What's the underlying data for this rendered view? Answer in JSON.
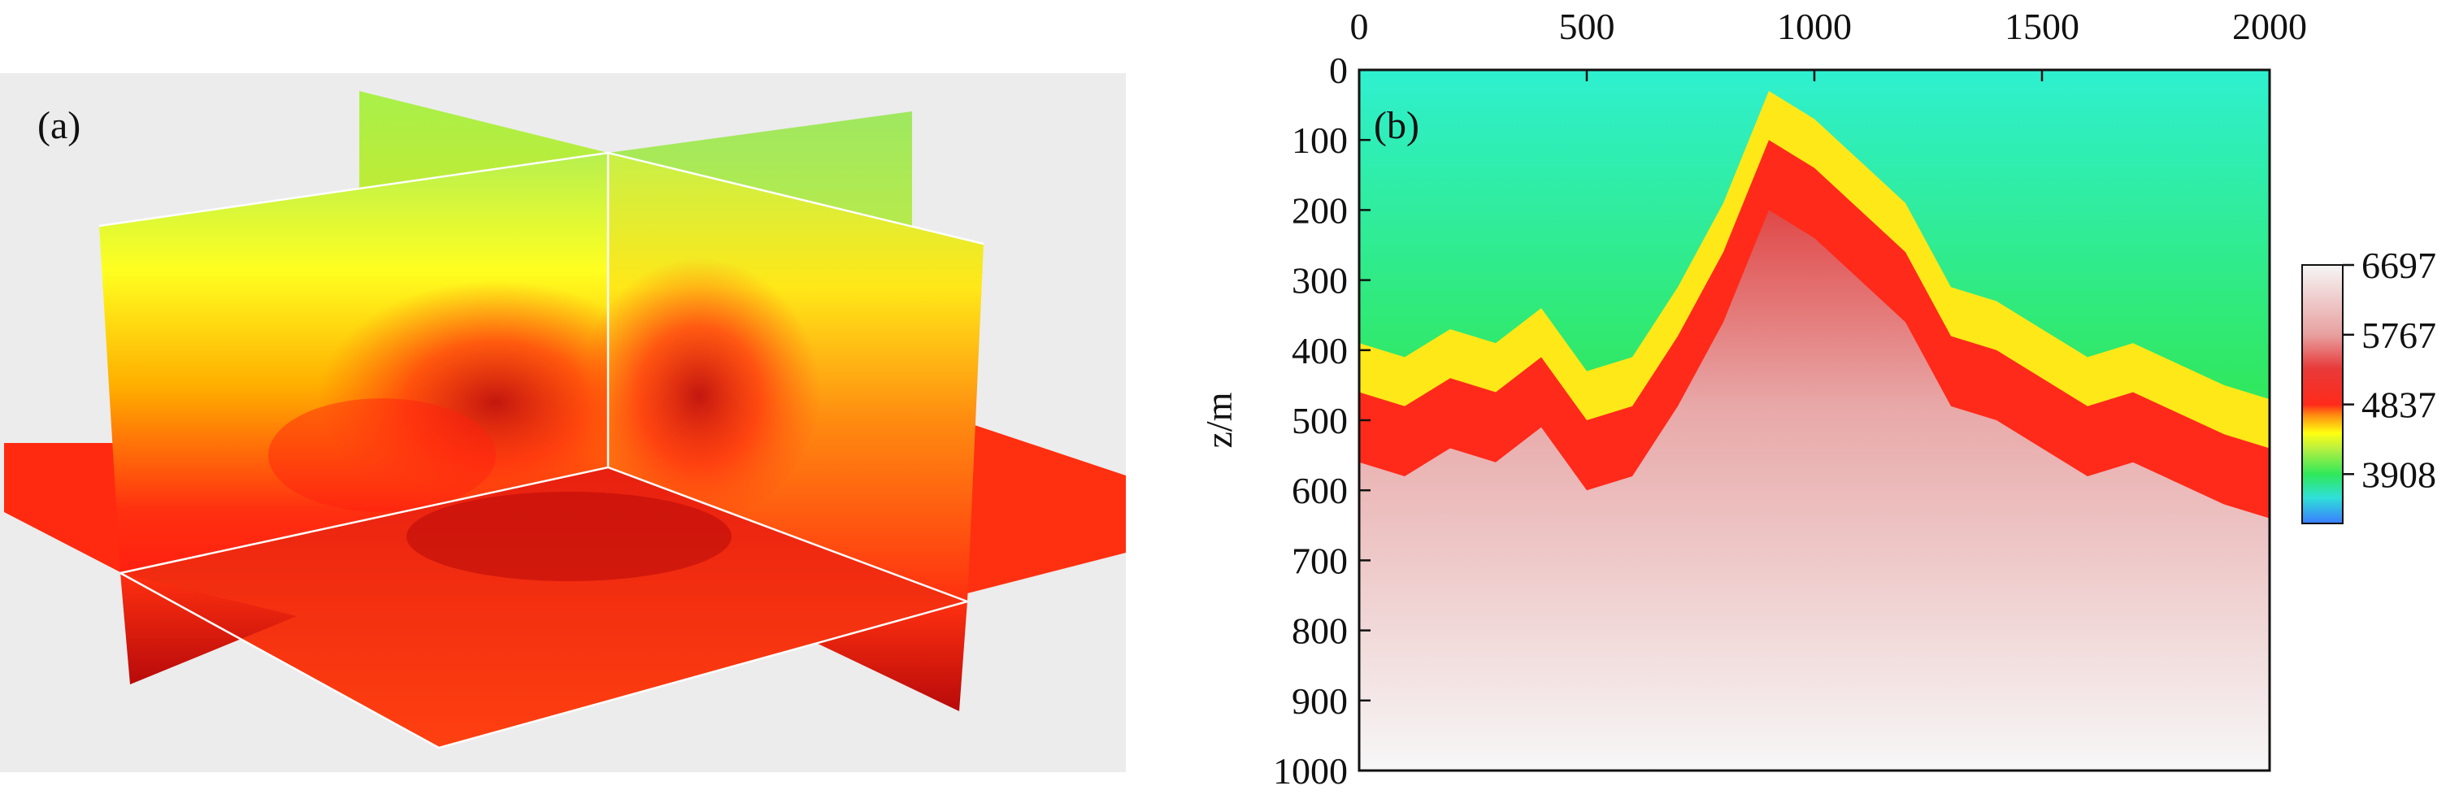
{
  "panel_a": {
    "label": "(a)"
  },
  "panel_b": {
    "label": "(b)"
  },
  "chart_data": [
    {
      "type": "heatmap",
      "panel": "(a)",
      "description_kind": "3d-slices",
      "colormap": [
        "#3aa0ff",
        "#2fd0d0",
        "#3ee03e",
        "#a8f04a",
        "#ffff00",
        "#ffb000",
        "#ff3010",
        "#d81010"
      ],
      "background": "#ececec"
    },
    {
      "type": "heatmap",
      "panel": "(b)",
      "title": "",
      "xlabel": "",
      "ylabel": "z/m",
      "xlim": [
        0,
        2000
      ],
      "ylim": [
        0,
        1000
      ],
      "x_ticks": [
        "0",
        "500",
        "1000",
        "1500",
        "2000"
      ],
      "y_ticks": [
        "0",
        "100",
        "200",
        "300",
        "400",
        "500",
        "600",
        "700",
        "800",
        "900",
        "1000"
      ],
      "colorbar": {
        "range": [
          3250,
          6697
        ],
        "ticks": [
          "6697",
          "5767",
          "4837",
          "3908"
        ],
        "tick_values": [
          6697,
          5767,
          4837,
          3908
        ]
      },
      "colormap_stops": [
        {
          "v": 3250,
          "color": "#3a7cff"
        },
        {
          "v": 3600,
          "color": "#2fe0d8"
        },
        {
          "v": 3908,
          "color": "#2fe85a"
        },
        {
          "v": 4250,
          "color": "#b8f040"
        },
        {
          "v": 4450,
          "color": "#ffff10"
        },
        {
          "v": 4700,
          "color": "#ff8a10"
        },
        {
          "v": 4837,
          "color": "#ff2a1a"
        },
        {
          "v": 5300,
          "color": "#e83a3a"
        },
        {
          "v": 5767,
          "color": "#e8a0a0"
        },
        {
          "v": 6697,
          "color": "#f6f6f6"
        }
      ],
      "layers": [
        {
          "top_z": 0,
          "value": 3650
        },
        {
          "top_z": 100,
          "value": 3950
        },
        {
          "top_z": 280,
          "value": 4350
        },
        {
          "top_z": 500,
          "value": 4950
        },
        {
          "top_z": 700,
          "value": 5600
        },
        {
          "top_z": 1000,
          "value": 6500
        }
      ],
      "red_boundary": [
        [
          0,
          500
        ],
        [
          100,
          520
        ],
        [
          200,
          480
        ],
        [
          300,
          500
        ],
        [
          400,
          450
        ],
        [
          500,
          540
        ],
        [
          600,
          520
        ],
        [
          700,
          420
        ],
        [
          800,
          300
        ],
        [
          900,
          140
        ],
        [
          1000,
          180
        ],
        [
          1100,
          240
        ],
        [
          1200,
          300
        ],
        [
          1300,
          420
        ],
        [
          1400,
          440
        ],
        [
          1500,
          480
        ],
        [
          1600,
          520
        ],
        [
          1700,
          500
        ],
        [
          1800,
          530
        ],
        [
          1900,
          560
        ],
        [
          2000,
          580
        ]
      ]
    }
  ]
}
